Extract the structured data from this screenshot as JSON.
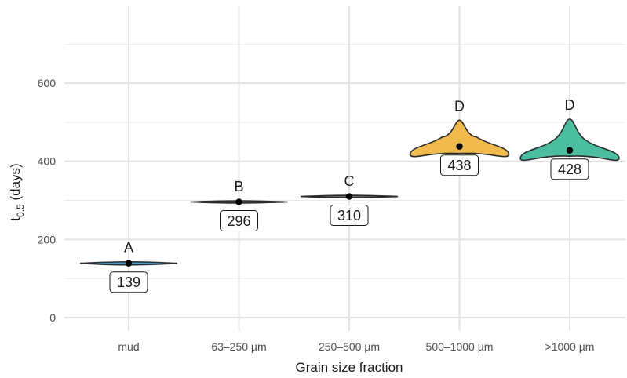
{
  "chart_data": {
    "type": "violin",
    "xlabel": "Grain size fraction",
    "ylabel": {
      "base": "t",
      "subscript": "0.5",
      "suffix": " (days)"
    },
    "ylim": [
      -25,
      720
    ],
    "yticks": [
      0,
      200,
      400,
      600
    ],
    "grid": true,
    "categories": [
      "mud",
      "63–250 µm",
      "250–500 µm",
      "500–1000 µm",
      ">1000 µm"
    ],
    "medians": [
      139,
      296,
      310,
      438,
      428
    ],
    "median_labels": [
      "139",
      "296",
      "310",
      "438",
      "428"
    ],
    "group_letters": [
      "A",
      "B",
      "C",
      "D",
      "D"
    ],
    "violins": [
      {
        "color": "#3b8fc4",
        "min": 135,
        "max": 143
      },
      {
        "color": "#5a5a5a",
        "min": 293,
        "max": 299
      },
      {
        "color": "#5a5a5a",
        "min": 307,
        "max": 313
      },
      {
        "color": "#efb43f",
        "min": 420,
        "max": 505
      },
      {
        "color": "#3bb896",
        "min": 413,
        "max": 508
      }
    ]
  }
}
